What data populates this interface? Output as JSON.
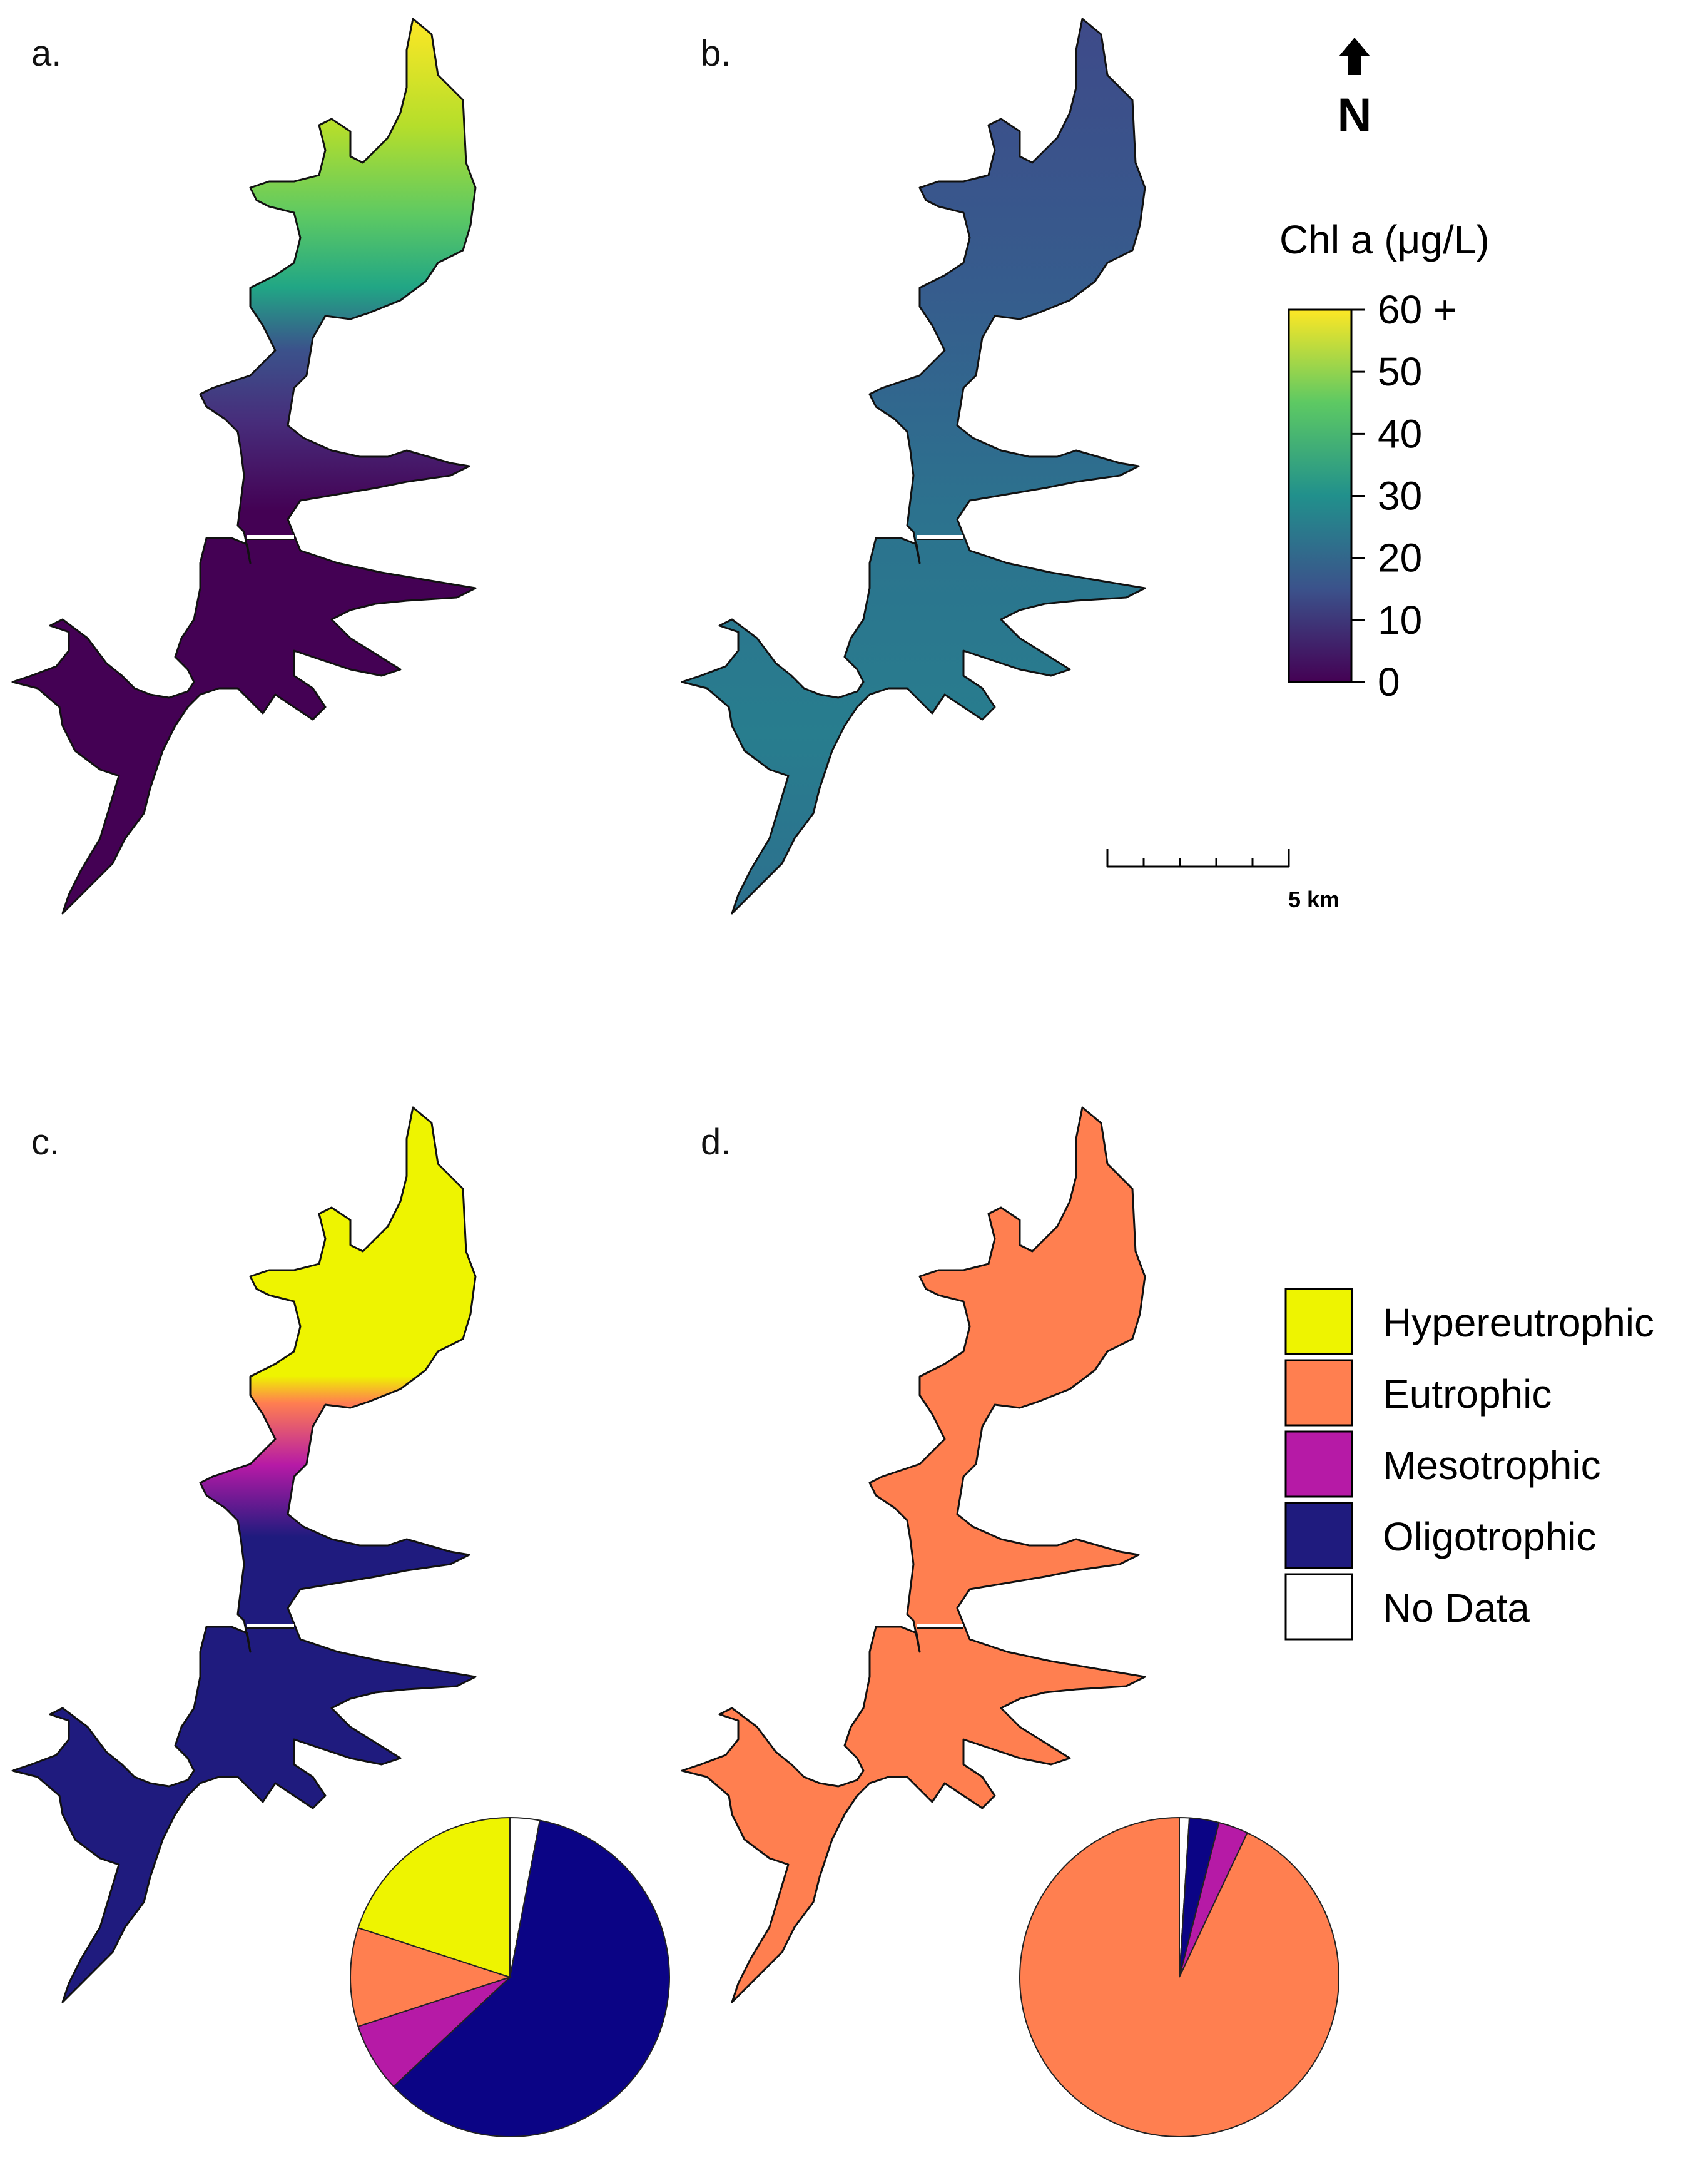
{
  "panels": [
    {
      "label": "a.",
      "kind": "chl",
      "scenario": "high"
    },
    {
      "label": "b.",
      "kind": "chl",
      "scenario": "mid"
    },
    {
      "label": "c.",
      "kind": "trophic",
      "scenario": "mixed"
    },
    {
      "label": "d.",
      "kind": "trophic",
      "scenario": "eutrophic"
    }
  ],
  "north_arrow": {
    "label": "N",
    "icon": "north-arrow-icon"
  },
  "colorbar": {
    "title": "Chl a (μg/L)",
    "ticks": [
      "0",
      "10",
      "20",
      "30",
      "40",
      "50",
      "60 +"
    ],
    "min": 0,
    "max": 60,
    "palette": [
      "#440154",
      "#3b528b",
      "#21908c",
      "#5dc963",
      "#fde725"
    ]
  },
  "scale_bar": {
    "label": "5 km",
    "segments": 5
  },
  "trophic_legend": [
    {
      "label": "Hypereutrophic",
      "color": "#eef400"
    },
    {
      "label": "Eutrophic",
      "color": "#ff7f50"
    },
    {
      "label": "Mesotrophic",
      "color": "#b61aa6"
    },
    {
      "label": "Oligotrophic",
      "color": "#1f1b7e"
    },
    {
      "label": "No Data",
      "color": "#ffffff"
    }
  ],
  "chart_data": [
    {
      "type": "pie",
      "panel": "c.",
      "categories": [
        "No Data",
        "Oligotrophic",
        "Mesotrophic",
        "Eutrophic",
        "Hypereutrophic"
      ],
      "values": [
        3,
        60,
        7,
        10,
        20
      ],
      "colors": [
        "#ffffff",
        "#0b0485",
        "#b61aa6",
        "#ff7f50",
        "#eef400"
      ]
    },
    {
      "type": "pie",
      "panel": "d.",
      "categories": [
        "No Data",
        "Oligotrophic",
        "Mesotrophic",
        "Eutrophic"
      ],
      "values": [
        1,
        3,
        3,
        93
      ],
      "colors": [
        "#ffffff",
        "#0b0485",
        "#b61aa6",
        "#ff7f50"
      ]
    }
  ]
}
